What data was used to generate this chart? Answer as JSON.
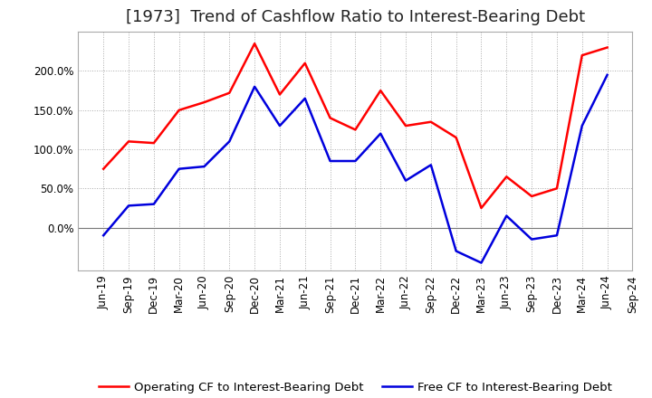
{
  "title": "[1973]  Trend of Cashflow Ratio to Interest-Bearing Debt",
  "background_color": "#ffffff",
  "plot_background_color": "#ffffff",
  "grid_color": "#aaaaaa",
  "x_labels": [
    "Jun-19",
    "Sep-19",
    "Dec-19",
    "Mar-20",
    "Jun-20",
    "Sep-20",
    "Dec-20",
    "Mar-21",
    "Jun-21",
    "Sep-21",
    "Dec-21",
    "Mar-22",
    "Jun-22",
    "Sep-22",
    "Dec-22",
    "Mar-23",
    "Jun-23",
    "Sep-23",
    "Dec-23",
    "Mar-24",
    "Jun-24",
    "Sep-24"
  ],
  "operating_cf": [
    75.0,
    110.0,
    108.0,
    150.0,
    160.0,
    172.0,
    235.0,
    170.0,
    210.0,
    140.0,
    125.0,
    175.0,
    130.0,
    135.0,
    115.0,
    25.0,
    65.0,
    40.0,
    50.0,
    220.0,
    230.0,
    null
  ],
  "free_cf": [
    -10.0,
    28.0,
    30.0,
    75.0,
    78.0,
    110.0,
    180.0,
    130.0,
    165.0,
    85.0,
    85.0,
    120.0,
    60.0,
    80.0,
    -30.0,
    -45.0,
    15.0,
    -15.0,
    -10.0,
    130.0,
    195.0,
    null
  ],
  "operating_color": "#ff0000",
  "free_color": "#0000dd",
  "ylim": [
    -55,
    250
  ],
  "yticks": [
    0.0,
    50.0,
    100.0,
    150.0,
    200.0
  ],
  "ytick_labels": [
    "0.0%",
    "50.0%",
    "100.0%",
    "150.0%",
    "200.0%"
  ],
  "legend_operating": "Operating CF to Interest-Bearing Debt",
  "legend_free": "Free CF to Interest-Bearing Debt",
  "title_fontsize": 13,
  "tick_fontsize": 8.5,
  "legend_fontsize": 9.5,
  "line_width": 1.8
}
